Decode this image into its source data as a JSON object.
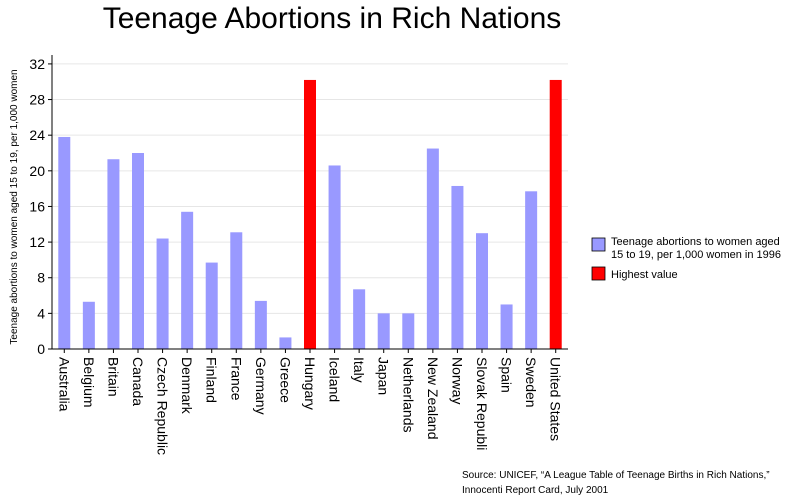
{
  "chart_data": {
    "type": "bar",
    "title": "Teenage Abortions in Rich Nations",
    "ylabel": "Teenage abortions to women aged 15 to 19, per 1,000 women",
    "xlabel": "",
    "ylim": [
      0,
      33
    ],
    "yticks": [
      0,
      4,
      8,
      12,
      16,
      20,
      24,
      28,
      32
    ],
    "grid": true,
    "legend_position": "right",
    "categories": [
      "Australia",
      "Belgium",
      "Britain",
      "Canada",
      "Czech Republic",
      "Denmark",
      "Finland",
      "France",
      "Germany",
      "Greece",
      "Hungary",
      "Iceland",
      "Italy",
      "Japan",
      "Netherlands",
      "New Zealand",
      "Norway",
      "Slovak Republi",
      "Spain",
      "Sweden",
      "United States"
    ],
    "series": [
      {
        "name": "Teenage abortions to women aged 15 to 19, per 1,000 women in 1996",
        "color": "#9999ff",
        "values": [
          23.8,
          5.3,
          21.3,
          22.0,
          12.4,
          15.4,
          9.7,
          13.1,
          5.4,
          1.3,
          30.2,
          20.6,
          6.7,
          4.0,
          4.0,
          22.5,
          18.3,
          13.0,
          5.0,
          17.7,
          30.2
        ]
      }
    ],
    "highlight": {
      "name": "Highest value",
      "color": "#ff0000",
      "categories": [
        "Hungary",
        "United States"
      ]
    },
    "source": [
      "Source: UNICEF, “A League Table of Teenage Births in Rich Nations,”",
      "Innocenti Report Card, July 2001"
    ]
  }
}
